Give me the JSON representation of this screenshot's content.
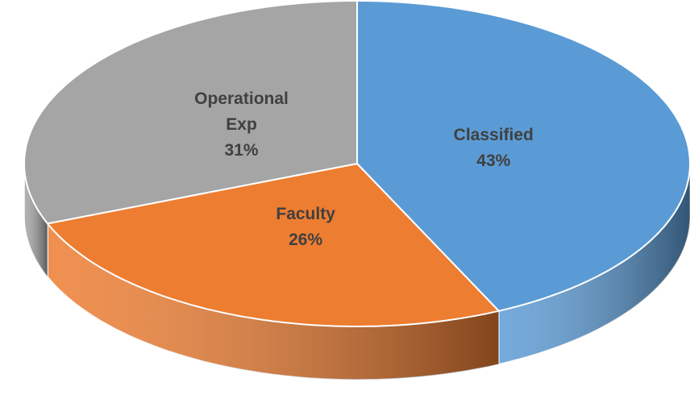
{
  "chart_data": {
    "type": "pie",
    "categories": [
      "Classified",
      "Faculty",
      "Operational Exp"
    ],
    "values": [
      43,
      26,
      31
    ],
    "value_labels": [
      "43%",
      "26%",
      "31%"
    ],
    "colors": [
      "#5b9bd5",
      "#ed7d31",
      "#a5a5a5"
    ]
  }
}
